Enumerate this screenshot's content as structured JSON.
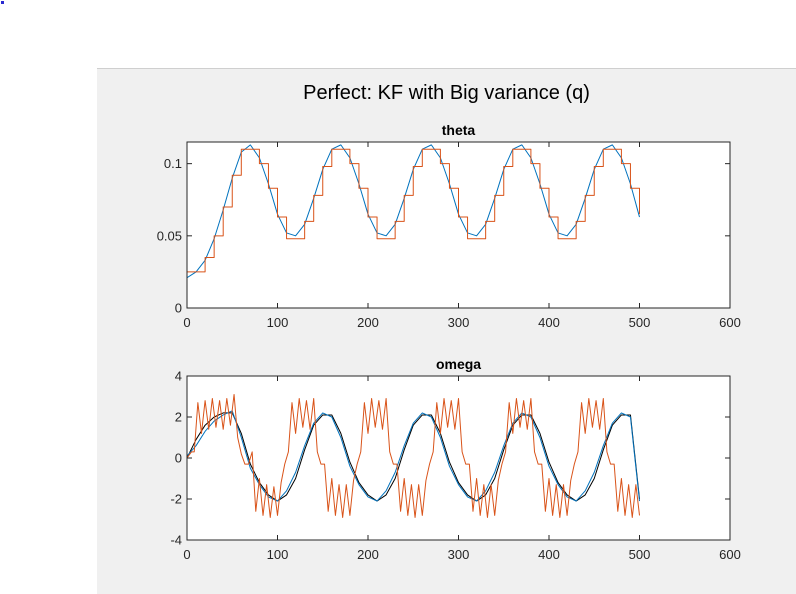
{
  "figure": {
    "title": "Perfect: KF with Big variance (q)"
  },
  "colors": {
    "page_background": "#ffffff",
    "figure_background": "#f0f0f0",
    "axes_background": "#ffffff",
    "axis_color": "#262626",
    "true_series": "#0072bd",
    "estimate_series": "#d95319",
    "reference_series": "#000000"
  },
  "chart_data": [
    {
      "type": "line",
      "title": "theta",
      "xlabel": "",
      "ylabel": "",
      "xlim": [
        0,
        600
      ],
      "ylim": [
        0,
        0.115
      ],
      "xticks": [
        0,
        100,
        200,
        300,
        400,
        500,
        600
      ],
      "xtick_labels": [
        "0",
        "100",
        "200",
        "300",
        "400",
        "500",
        "600"
      ],
      "yticks": [
        0,
        0.05,
        0.1
      ],
      "ytick_labels": [
        "0",
        "0.05",
        "0.1"
      ],
      "grid": false,
      "series": [
        {
          "role": "smooth",
          "color": "#0072bd",
          "x": [
            0,
            10,
            20,
            30,
            40,
            50,
            60,
            70,
            80,
            90,
            100,
            110,
            120,
            130,
            140,
            150,
            160,
            170,
            180,
            190,
            200,
            210,
            220,
            230,
            240,
            250,
            260,
            270,
            280,
            290,
            300,
            310,
            320,
            330,
            340,
            350,
            360,
            370,
            380,
            390,
            400,
            410,
            420,
            430,
            440,
            450,
            460,
            470,
            480,
            490,
            500
          ],
          "y": [
            0.021,
            0.025,
            0.033,
            0.048,
            0.068,
            0.09,
            0.108,
            0.113,
            0.104,
            0.086,
            0.065,
            0.052,
            0.05,
            0.058,
            0.076,
            0.096,
            0.11,
            0.113,
            0.104,
            0.086,
            0.065,
            0.052,
            0.05,
            0.058,
            0.076,
            0.096,
            0.11,
            0.113,
            0.104,
            0.086,
            0.065,
            0.052,
            0.05,
            0.058,
            0.076,
            0.096,
            0.11,
            0.113,
            0.104,
            0.086,
            0.065,
            0.052,
            0.05,
            0.058,
            0.076,
            0.096,
            0.11,
            0.113,
            0.104,
            0.086,
            0.063
          ]
        },
        {
          "role": "stepped",
          "color": "#d95319",
          "x": [
            0,
            10,
            20,
            30,
            40,
            50,
            60,
            70,
            80,
            90,
            100,
            110,
            120,
            130,
            140,
            150,
            160,
            170,
            180,
            190,
            200,
            210,
            220,
            230,
            240,
            250,
            260,
            270,
            280,
            290,
            300,
            310,
            320,
            330,
            340,
            350,
            360,
            370,
            380,
            390,
            400,
            410,
            420,
            430,
            440,
            450,
            460,
            470,
            480,
            490,
            500
          ],
          "y": [
            0.025,
            0.025,
            0.035,
            0.05,
            0.07,
            0.092,
            0.11,
            0.11,
            0.1,
            0.083,
            0.063,
            0.048,
            0.048,
            0.06,
            0.078,
            0.098,
            0.11,
            0.11,
            0.1,
            0.083,
            0.063,
            0.048,
            0.048,
            0.06,
            0.078,
            0.098,
            0.11,
            0.11,
            0.1,
            0.083,
            0.063,
            0.048,
            0.048,
            0.06,
            0.078,
            0.098,
            0.11,
            0.11,
            0.1,
            0.083,
            0.063,
            0.048,
            0.048,
            0.06,
            0.078,
            0.098,
            0.11,
            0.11,
            0.1,
            0.083,
            0.065
          ]
        }
      ]
    },
    {
      "type": "line",
      "title": "omega",
      "xlabel": "",
      "ylabel": "",
      "xlim": [
        0,
        600
      ],
      "ylim": [
        -4,
        4
      ],
      "xticks": [
        0,
        100,
        200,
        300,
        400,
        500,
        600
      ],
      "xtick_labels": [
        "0",
        "100",
        "200",
        "300",
        "400",
        "500",
        "600"
      ],
      "yticks": [
        -4,
        -2,
        0,
        2,
        4
      ],
      "ytick_labels": [
        "-4",
        "-2",
        "0",
        "2",
        "4"
      ],
      "grid": false,
      "series": [
        {
          "role": "reference",
          "color": "#000000",
          "x": [
            0,
            10,
            20,
            30,
            40,
            50,
            60,
            70,
            80,
            90,
            100,
            110,
            120,
            130,
            140,
            150,
            160,
            170,
            180,
            190,
            200,
            210,
            220,
            230,
            240,
            250,
            260,
            270,
            280,
            290,
            300,
            310,
            320,
            330,
            340,
            350,
            360,
            370,
            380,
            390,
            400,
            410,
            420,
            430,
            440,
            450,
            460,
            470,
            480,
            490,
            500
          ],
          "y": [
            0,
            0.9,
            1.6,
            2.0,
            2.2,
            2.2,
            1.2,
            -0.3,
            -1.2,
            -1.8,
            -2.1,
            -1.8,
            -1.0,
            0.4,
            1.6,
            2.1,
            2.1,
            1.2,
            -0.2,
            -1.2,
            -1.8,
            -2.1,
            -1.8,
            -1.0,
            0.4,
            1.6,
            2.1,
            2.1,
            1.2,
            -0.2,
            -1.2,
            -1.8,
            -2.1,
            -1.8,
            -1.0,
            0.4,
            1.6,
            2.1,
            2.1,
            1.2,
            -0.2,
            -1.2,
            -1.8,
            -2.1,
            -1.8,
            -1.0,
            0.4,
            1.6,
            2.1,
            2.1,
            -2.0
          ]
        },
        {
          "role": "smooth",
          "color": "#0072bd",
          "x": [
            0,
            10,
            20,
            30,
            40,
            50,
            60,
            70,
            80,
            90,
            100,
            110,
            120,
            130,
            140,
            150,
            160,
            170,
            180,
            190,
            200,
            210,
            220,
            230,
            240,
            250,
            260,
            270,
            280,
            290,
            300,
            310,
            320,
            330,
            340,
            350,
            360,
            370,
            380,
            390,
            400,
            410,
            420,
            430,
            440,
            450,
            460,
            470,
            480,
            490,
            500
          ],
          "y": [
            0.1,
            0.6,
            1.3,
            1.8,
            2.1,
            2.3,
            1.0,
            -0.5,
            -1.3,
            -1.9,
            -2.1,
            -1.6,
            -0.7,
            0.6,
            1.7,
            2.2,
            2.0,
            1.0,
            -0.4,
            -1.3,
            -1.9,
            -2.1,
            -1.6,
            -0.7,
            0.6,
            1.7,
            2.2,
            2.0,
            1.0,
            -0.4,
            -1.3,
            -1.9,
            -2.1,
            -1.6,
            -0.7,
            0.6,
            1.7,
            2.2,
            2.0,
            1.0,
            -0.4,
            -1.3,
            -1.9,
            -2.1,
            -1.6,
            -0.7,
            0.6,
            1.7,
            2.2,
            2.0,
            -2.1
          ]
        },
        {
          "role": "noisy-estimate",
          "color": "#d95319",
          "x": [
            0,
            5,
            8,
            12,
            16,
            20,
            24,
            28,
            32,
            36,
            40,
            44,
            48,
            52,
            56,
            60,
            64,
            68,
            72,
            76,
            80,
            84,
            88,
            92,
            96,
            100,
            104,
            108,
            112,
            116,
            120,
            124,
            128,
            132,
            136,
            140,
            144,
            148,
            152,
            156,
            160,
            164,
            168,
            172,
            176,
            180,
            184,
            188,
            192,
            196,
            200,
            204,
            208,
            212,
            216,
            220,
            224,
            228,
            232,
            236,
            240,
            244,
            248,
            252,
            256,
            260,
            264,
            268,
            272,
            276,
            280,
            284,
            288,
            292,
            296,
            300,
            304,
            308,
            312,
            316,
            320,
            324,
            328,
            332,
            336,
            340,
            344,
            348,
            352,
            356,
            360,
            364,
            368,
            372,
            376,
            380,
            384,
            388,
            392,
            396,
            400,
            404,
            408,
            412,
            416,
            420,
            424,
            428,
            432,
            436,
            440,
            444,
            448,
            452,
            456,
            460,
            464,
            468,
            472,
            476,
            480,
            484,
            488,
            492,
            496,
            500
          ],
          "y": [
            0.0,
            0.3,
            0.3,
            2.7,
            1.2,
            2.8,
            1.4,
            2.9,
            1.5,
            2.8,
            1.4,
            2.9,
            1.6,
            3.1,
            1.0,
            0.2,
            -0.3,
            -0.3,
            0.3,
            -2.6,
            -1.0,
            -2.8,
            -1.3,
            -2.9,
            -1.4,
            -2.8,
            -1.2,
            -0.3,
            0.3,
            2.7,
            1.2,
            2.9,
            1.5,
            2.8,
            1.4,
            2.9,
            0.3,
            -0.3,
            -0.3,
            -2.6,
            -1.0,
            -2.8,
            -1.3,
            -2.9,
            -1.3,
            -2.8,
            -1.1,
            -0.3,
            0.3,
            2.7,
            1.2,
            2.9,
            1.5,
            2.8,
            1.4,
            2.9,
            0.3,
            -0.3,
            -0.3,
            -2.6,
            -1.0,
            -2.8,
            -1.3,
            -2.9,
            -1.3,
            -2.8,
            -1.1,
            -0.3,
            0.3,
            2.7,
            1.2,
            2.9,
            1.5,
            2.8,
            1.4,
            2.9,
            0.3,
            -0.3,
            -0.3,
            -2.6,
            -1.0,
            -2.8,
            -1.3,
            -2.9,
            -1.3,
            -2.8,
            -1.1,
            -0.3,
            0.3,
            2.7,
            1.2,
            2.9,
            1.5,
            2.8,
            1.4,
            2.9,
            0.3,
            -0.3,
            -0.3,
            -2.6,
            -1.0,
            -2.8,
            -1.3,
            -2.9,
            -1.3,
            -2.8,
            -1.1,
            -0.3,
            0.3,
            2.7,
            1.2,
            2.9,
            1.5,
            2.8,
            1.4,
            2.9,
            0.3,
            -0.3,
            -0.3,
            -2.6,
            -1.0,
            -2.8,
            -1.3,
            -2.9,
            -1.3,
            -2.8
          ]
        }
      ]
    }
  ]
}
